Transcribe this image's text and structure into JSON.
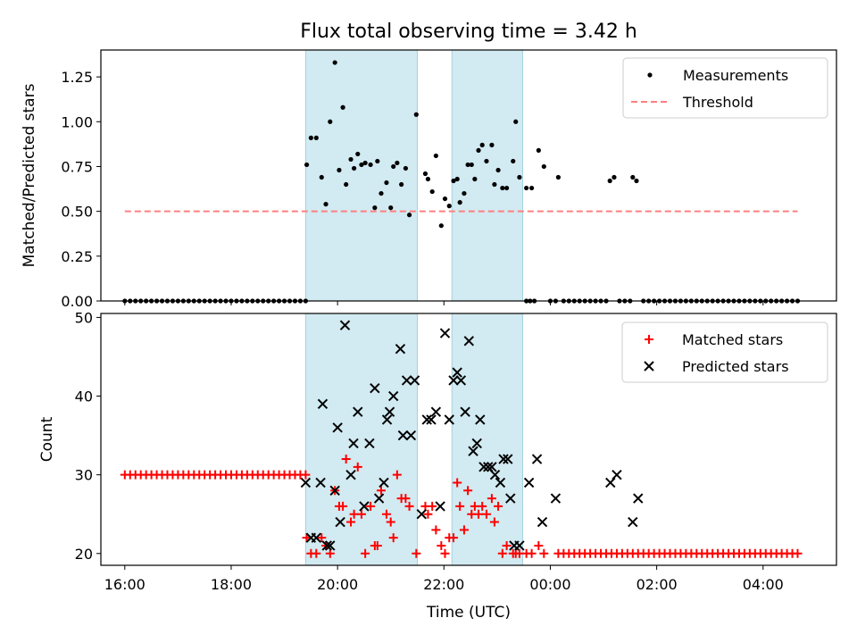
{
  "figure": {
    "title": "Flux total observing time = 3.42 h",
    "xlabel": "Time (UTC)"
  },
  "colors": {
    "shade": "#add8e6",
    "measurements": "#000000",
    "threshold": "#ff7f7f",
    "matched": "#ff0000",
    "predicted": "#000000"
  },
  "chart_data": [
    {
      "type": "scatter",
      "ylabel": "Matched/Predicted stars",
      "xlim_hours": [
        15.55,
        29.38
      ],
      "ylim": [
        0,
        1.4
      ],
      "yticks": [
        0.0,
        0.25,
        0.5,
        0.75,
        1.0,
        1.25
      ],
      "ytick_labels": [
        "0.00",
        "0.25",
        "0.50",
        "0.75",
        "1.00",
        "1.25"
      ],
      "grid": false,
      "legend_position": "upper right",
      "shaded_intervals_hours": [
        [
          19.4,
          21.5
        ],
        [
          22.15,
          23.48
        ]
      ],
      "series": [
        {
          "name": "Measurements",
          "marker": "dot",
          "x_hours": [
            19.42,
            19.5,
            19.6,
            19.7,
            19.78,
            19.86,
            19.95,
            20.03,
            20.1,
            20.16,
            20.25,
            20.31,
            20.38,
            20.45,
            20.52,
            20.62,
            20.7,
            20.75,
            20.82,
            20.92,
            21.0,
            21.05,
            21.12,
            21.2,
            21.28,
            21.35,
            21.48,
            21.65,
            21.7,
            21.78,
            21.85,
            21.95,
            22.02,
            22.1,
            22.18,
            22.25,
            22.3,
            22.38,
            22.45,
            22.52,
            22.58,
            22.65,
            22.72,
            22.8,
            22.9,
            22.95,
            23.02,
            23.1,
            23.18,
            23.3,
            23.35,
            23.42,
            23.55,
            23.65,
            23.78,
            23.88,
            24.15,
            25.12,
            25.2,
            25.55,
            25.62
          ],
          "y": [
            0.76,
            0.91,
            0.91,
            0.69,
            0.54,
            1.0,
            1.33,
            0.73,
            1.08,
            0.65,
            0.79,
            0.74,
            0.82,
            0.76,
            0.77,
            0.76,
            0.52,
            0.78,
            0.6,
            0.66,
            0.52,
            0.75,
            0.77,
            0.65,
            0.74,
            0.48,
            1.04,
            0.71,
            0.68,
            0.61,
            0.81,
            0.42,
            0.57,
            0.53,
            0.67,
            0.68,
            0.55,
            0.6,
            0.76,
            0.76,
            0.68,
            0.84,
            0.87,
            0.78,
            0.87,
            0.65,
            0.73,
            0.63,
            0.63,
            0.78,
            1.0,
            0.69,
            0.63,
            0.63,
            0.84,
            0.75,
            0.69,
            0.67,
            0.69,
            0.69,
            0.67
          ],
          "zero_x_hours": [
            16.0,
            16.1,
            16.2,
            16.3,
            16.4,
            16.5,
            16.6,
            16.7,
            16.8,
            16.9,
            17.0,
            17.1,
            17.2,
            17.3,
            17.4,
            17.5,
            17.6,
            17.7,
            17.8,
            17.9,
            18.0,
            18.1,
            18.2,
            18.3,
            18.4,
            18.5,
            18.6,
            18.7,
            18.8,
            18.9,
            19.0,
            19.1,
            19.2,
            19.3,
            19.4,
            23.55,
            23.62,
            23.7,
            24.0,
            24.1,
            24.25,
            24.35,
            24.45,
            24.55,
            24.65,
            24.75,
            24.85,
            24.95,
            25.05,
            25.3,
            25.4,
            25.5,
            25.75,
            25.85,
            25.95,
            26.05,
            26.15,
            26.25,
            26.35,
            26.45,
            26.55,
            26.65,
            26.75,
            26.85,
            26.95,
            27.05,
            27.15,
            27.25,
            27.35,
            27.45,
            27.55,
            27.65,
            27.75,
            27.85,
            27.95,
            28.05,
            28.15,
            28.25,
            28.35,
            28.45,
            28.55,
            28.65
          ]
        },
        {
          "name": "Threshold",
          "type": "line",
          "style": "dashed",
          "x_hours": [
            16.0,
            28.65
          ],
          "y": [
            0.5,
            0.5
          ]
        }
      ]
    },
    {
      "type": "scatter",
      "ylabel": "Count",
      "xlim_hours": [
        15.55,
        29.38
      ],
      "ylim": [
        18.5,
        50.5
      ],
      "yticks": [
        20,
        30,
        40,
        50
      ],
      "ytick_labels": [
        "20",
        "30",
        "40",
        "50"
      ],
      "xticks_hours": [
        16,
        18,
        20,
        22,
        24,
        26,
        28
      ],
      "xtick_labels": [
        "16:00",
        "18:00",
        "20:00",
        "22:00",
        "00:00",
        "02:00",
        "04:00"
      ],
      "grid": false,
      "legend_position": "upper right",
      "shaded_intervals_hours": [
        [
          19.4,
          21.5
        ],
        [
          22.15,
          23.48
        ]
      ],
      "series": [
        {
          "name": "Matched stars",
          "marker": "plus",
          "x_hours": [
            16.0,
            16.1,
            16.2,
            16.3,
            16.4,
            16.5,
            16.6,
            16.7,
            16.8,
            16.9,
            17.0,
            17.1,
            17.2,
            17.3,
            17.4,
            17.5,
            17.6,
            17.7,
            17.8,
            17.9,
            18.0,
            18.1,
            18.2,
            18.3,
            18.4,
            18.5,
            18.6,
            18.7,
            18.8,
            18.9,
            19.0,
            19.1,
            19.2,
            19.3,
            19.4,
            19.42,
            19.5,
            19.6,
            19.7,
            19.78,
            19.86,
            19.95,
            20.03,
            20.1,
            20.16,
            20.25,
            20.31,
            20.38,
            20.45,
            20.52,
            20.62,
            20.7,
            20.75,
            20.82,
            20.92,
            21.0,
            21.05,
            21.12,
            21.2,
            21.28,
            21.35,
            21.48,
            21.65,
            21.7,
            21.78,
            21.85,
            21.95,
            22.02,
            22.1,
            22.18,
            22.25,
            22.3,
            22.38,
            22.45,
            22.52,
            22.58,
            22.65,
            22.72,
            22.8,
            22.9,
            22.95,
            23.02,
            23.1,
            23.18,
            23.3,
            23.35,
            23.42,
            23.55,
            23.65,
            23.78,
            23.88,
            24.15,
            24.25,
            24.35,
            24.45,
            24.55,
            24.65,
            24.75,
            24.85,
            24.95,
            25.05,
            25.15,
            25.25,
            25.35,
            25.45,
            25.55,
            25.65,
            25.75,
            25.85,
            25.95,
            26.05,
            26.15,
            26.25,
            26.35,
            26.45,
            26.55,
            26.65,
            26.75,
            26.85,
            26.95,
            27.05,
            27.15,
            27.25,
            27.35,
            27.45,
            27.55,
            27.65,
            27.75,
            27.85,
            27.95,
            28.05,
            28.15,
            28.25,
            28.35,
            28.45,
            28.55,
            28.65
          ],
          "y": [
            30,
            30,
            30,
            30,
            30,
            30,
            30,
            30,
            30,
            30,
            30,
            30,
            30,
            30,
            30,
            30,
            30,
            30,
            30,
            30,
            30,
            30,
            30,
            30,
            30,
            30,
            30,
            30,
            30,
            30,
            30,
            30,
            30,
            30,
            30,
            22,
            20,
            20,
            22,
            21,
            20,
            28,
            26,
            26,
            32,
            24,
            25,
            31,
            25,
            20,
            26,
            21,
            21,
            28,
            25,
            24,
            22,
            30,
            27,
            27,
            26,
            20,
            26,
            25,
            26,
            23,
            21,
            20,
            22,
            22,
            29,
            26,
            23,
            28,
            25,
            26,
            25,
            26,
            25,
            27,
            24,
            26,
            20,
            21,
            20,
            20,
            20,
            20,
            20,
            21,
            20,
            20,
            20,
            20,
            20,
            20,
            20,
            20,
            20,
            20,
            20,
            20,
            20,
            20,
            20,
            20,
            20,
            20,
            20,
            20,
            20,
            20,
            20,
            20,
            20,
            20,
            20,
            20,
            20,
            20,
            20,
            20,
            20,
            20,
            20,
            20,
            20,
            20,
            20,
            20,
            20,
            20,
            20,
            20,
            20,
            20,
            20
          ]
        },
        {
          "name": "Predicted stars",
          "marker": "x",
          "x_hours": [
            19.4,
            19.5,
            19.6,
            19.68,
            19.72,
            19.8,
            19.86,
            19.95,
            20.0,
            20.05,
            20.14,
            20.25,
            20.3,
            20.38,
            20.5,
            20.6,
            20.7,
            20.78,
            20.87,
            20.93,
            20.98,
            21.05,
            21.18,
            21.23,
            21.3,
            21.38,
            21.45,
            21.58,
            21.68,
            21.76,
            21.85,
            21.93,
            22.02,
            22.1,
            22.18,
            22.25,
            22.32,
            22.4,
            22.47,
            22.55,
            22.62,
            22.68,
            22.75,
            22.83,
            22.9,
            22.96,
            23.06,
            23.12,
            23.2,
            23.25,
            23.32,
            23.42,
            23.6,
            23.75,
            23.85,
            24.1,
            25.13,
            25.25,
            25.55,
            25.65
          ],
          "y": [
            29,
            22,
            22,
            29,
            39,
            21,
            21,
            28,
            36,
            24,
            49,
            30,
            34,
            38,
            26,
            34,
            41,
            27,
            29,
            37,
            38,
            40,
            46,
            35,
            42,
            35,
            42,
            25,
            37,
            37,
            38,
            26,
            48,
            37,
            42,
            43,
            42,
            38,
            47,
            33,
            34,
            37,
            31,
            31,
            31,
            30,
            29,
            32,
            32,
            27,
            21,
            21,
            29,
            32,
            24,
            27,
            29,
            30,
            24,
            27
          ]
        }
      ]
    }
  ]
}
